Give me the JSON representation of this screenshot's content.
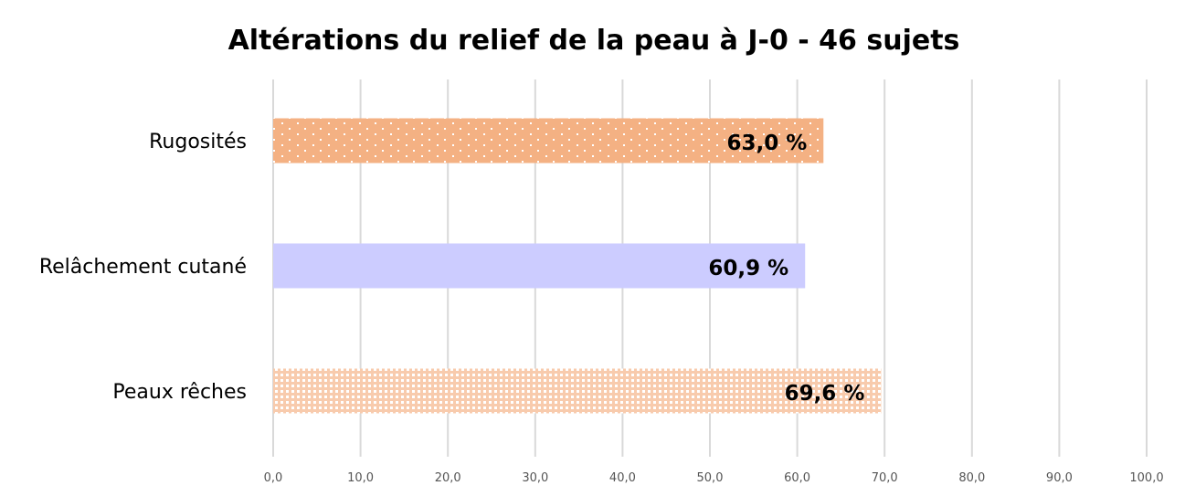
{
  "chart_data": {
    "type": "bar",
    "orientation": "horizontal",
    "title": "Altérations du relief de la peau à J-0 - 46 sujets",
    "categories": [
      "Rugosités",
      "Relâchement cutané",
      "Peaux rêches"
    ],
    "values": [
      63.0,
      60.9,
      69.6
    ],
    "data_labels": [
      "63,0 %",
      "60,9 %",
      "69,6 %"
    ],
    "colors": [
      "#f4b183",
      "#ccccff",
      "#f8cbad"
    ],
    "patterns": [
      "dots-sparse",
      "solid",
      "dots-dense"
    ],
    "xlim": [
      0,
      100
    ],
    "xticks": [
      "0,0",
      "10,0",
      "20,0",
      "30,0",
      "40,0",
      "50,0",
      "60,0",
      "70,0",
      "80,0",
      "90,0",
      "100,0"
    ],
    "grid": true,
    "xlabel": "",
    "ylabel": ""
  }
}
